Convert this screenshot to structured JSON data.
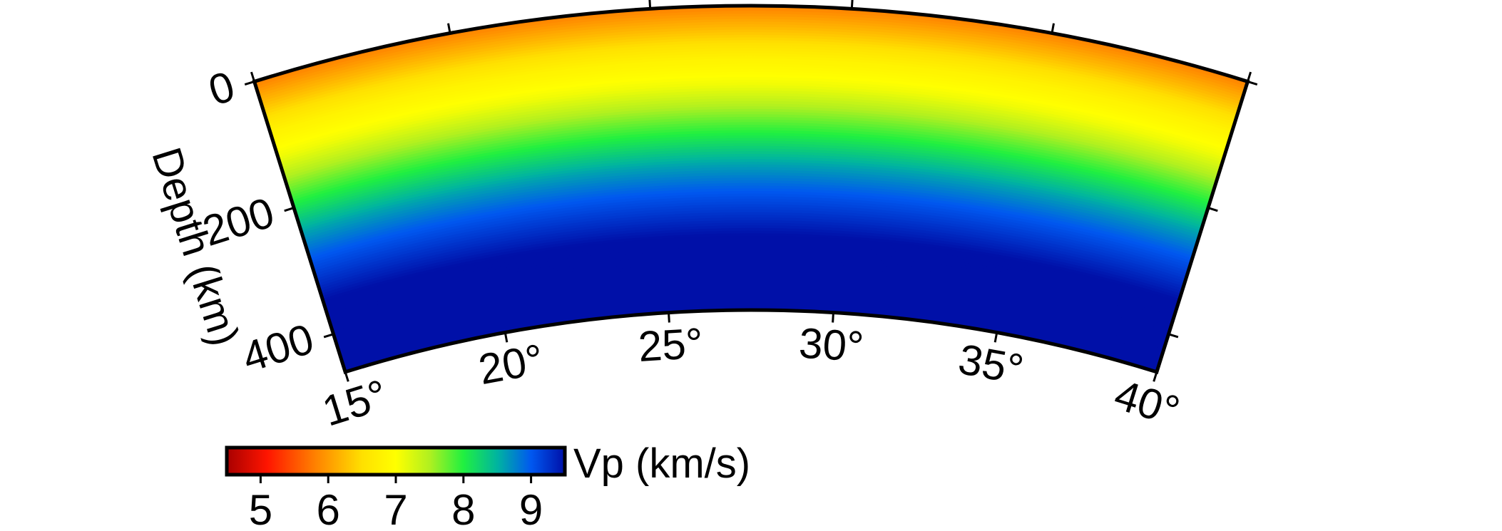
{
  "chart_data": {
    "type": "heatmap",
    "projection": "polar cross-section",
    "x": {
      "range": [
        15,
        40
      ],
      "ticks": [
        {
          "value": 15,
          "label": "15°"
        },
        {
          "value": 20,
          "label": "20°"
        },
        {
          "value": 25,
          "label": "25°"
        },
        {
          "value": 30,
          "label": "30°"
        },
        {
          "value": 35,
          "label": "35°"
        },
        {
          "value": 40,
          "label": "40°"
        }
      ]
    },
    "y": {
      "label": "Depth (km)",
      "range": [
        0,
        460
      ],
      "ticks": [
        {
          "value": 0,
          "label": "0"
        },
        {
          "value": 200,
          "label": "200"
        },
        {
          "value": 400,
          "label": "400"
        }
      ]
    },
    "field": {
      "name": "Vp",
      "varies_with": "depth",
      "profile": [
        {
          "depth": 0,
          "vp": 5.8
        },
        {
          "depth": 40,
          "vp": 6.3
        },
        {
          "depth": 80,
          "vp": 6.8
        },
        {
          "depth": 120,
          "vp": 7.1
        },
        {
          "depth": 160,
          "vp": 7.6
        },
        {
          "depth": 200,
          "vp": 8.1
        },
        {
          "depth": 240,
          "vp": 8.6
        },
        {
          "depth": 280,
          "vp": 9.0
        },
        {
          "depth": 320,
          "vp": 9.3
        },
        {
          "depth": 360,
          "vp": 9.6
        },
        {
          "depth": 400,
          "vp": 9.8
        },
        {
          "depth": 460,
          "vp": 10.0
        }
      ]
    },
    "colorbar": {
      "label": "Vp (km/s)",
      "range": [
        4.5,
        9.5
      ],
      "ticks": [
        {
          "value": 5,
          "label": "5"
        },
        {
          "value": 6,
          "label": "6"
        },
        {
          "value": 7,
          "label": "7"
        },
        {
          "value": 8,
          "label": "8"
        },
        {
          "value": 9,
          "label": "9"
        }
      ],
      "stops": [
        {
          "value": 4.5,
          "color": "#a80000"
        },
        {
          "value": 5.1,
          "color": "#ff1500"
        },
        {
          "value": 5.8,
          "color": "#ff8000"
        },
        {
          "value": 6.5,
          "color": "#ffe000"
        },
        {
          "value": 7.0,
          "color": "#ffff00"
        },
        {
          "value": 7.5,
          "color": "#b0f020"
        },
        {
          "value": 8.0,
          "color": "#20f040"
        },
        {
          "value": 8.5,
          "color": "#00b4a0"
        },
        {
          "value": 9.0,
          "color": "#0058f0"
        },
        {
          "value": 9.5,
          "color": "#0010a8"
        }
      ]
    }
  }
}
